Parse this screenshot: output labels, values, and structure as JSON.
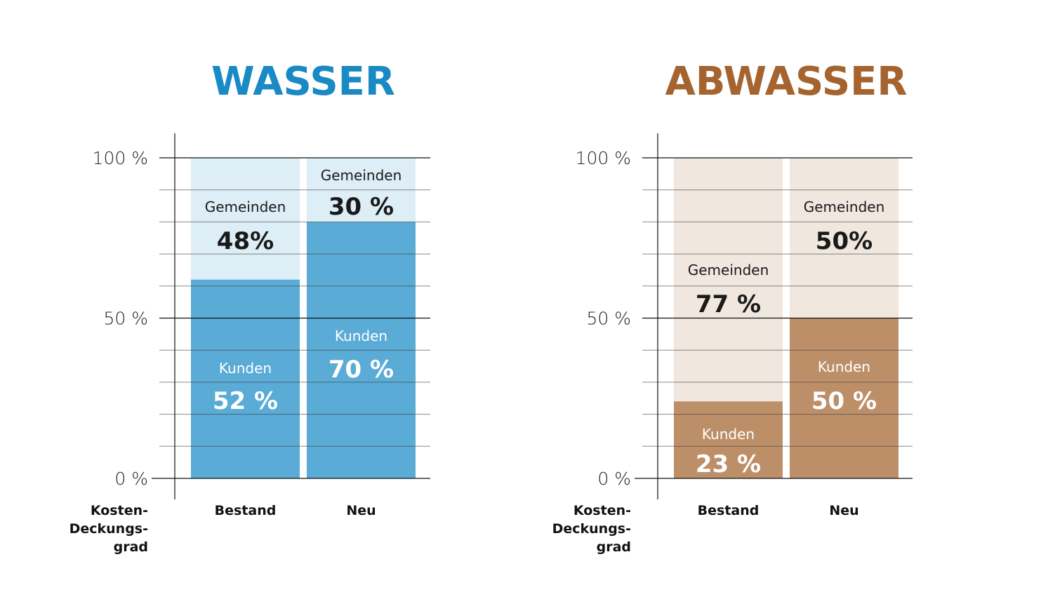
{
  "chart_data": [
    {
      "type": "bar",
      "stacked": true,
      "title": "WASSER",
      "title_color": "#1a8ac4",
      "colors": {
        "kunden": "#5aabd6",
        "gemeinden": "#ddeef6"
      },
      "ylabel": "Kosten-Deckungs-grad",
      "ylabel_lines": [
        "Kosten-",
        "Deckungs-",
        "grad"
      ],
      "ylim": [
        0,
        100
      ],
      "yticks": [
        {
          "value": 0,
          "label": "0 %"
        },
        {
          "value": 50,
          "label": "50 %"
        },
        {
          "value": 100,
          "label": "100 %"
        }
      ],
      "grid_step": 10,
      "categories": [
        "Bestand",
        "Neu"
      ],
      "series": [
        {
          "name": "Kunden",
          "values": [
            52,
            70
          ],
          "labels": [
            "52 %",
            "70 %"
          ],
          "bar_level": [
            62,
            80
          ]
        },
        {
          "name": "Gemeinden",
          "values": [
            48,
            30
          ],
          "labels": [
            "48%",
            "30 %"
          ]
        }
      ]
    },
    {
      "type": "bar",
      "stacked": true,
      "title": "ABWASSER",
      "title_color": "#a5642f",
      "colors": {
        "kunden": "#bc8f69",
        "gemeinden": "#f0e7df"
      },
      "ylabel": "Kosten-Deckungs-grad",
      "ylabel_lines": [
        "Kosten-",
        "Deckungs-",
        "grad"
      ],
      "ylim": [
        0,
        100
      ],
      "yticks": [
        {
          "value": 0,
          "label": "0 %"
        },
        {
          "value": 50,
          "label": "50 %"
        },
        {
          "value": 100,
          "label": "100 %"
        }
      ],
      "grid_step": 10,
      "categories": [
        "Bestand",
        "Neu"
      ],
      "series": [
        {
          "name": "Kunden",
          "values": [
            23,
            50
          ],
          "labels": [
            "23 %",
            "50 %"
          ],
          "bar_level": [
            24,
            50
          ]
        },
        {
          "name": "Gemeinden",
          "values": [
            77,
            50
          ],
          "labels": [
            "77 %",
            "50%"
          ]
        }
      ]
    }
  ]
}
